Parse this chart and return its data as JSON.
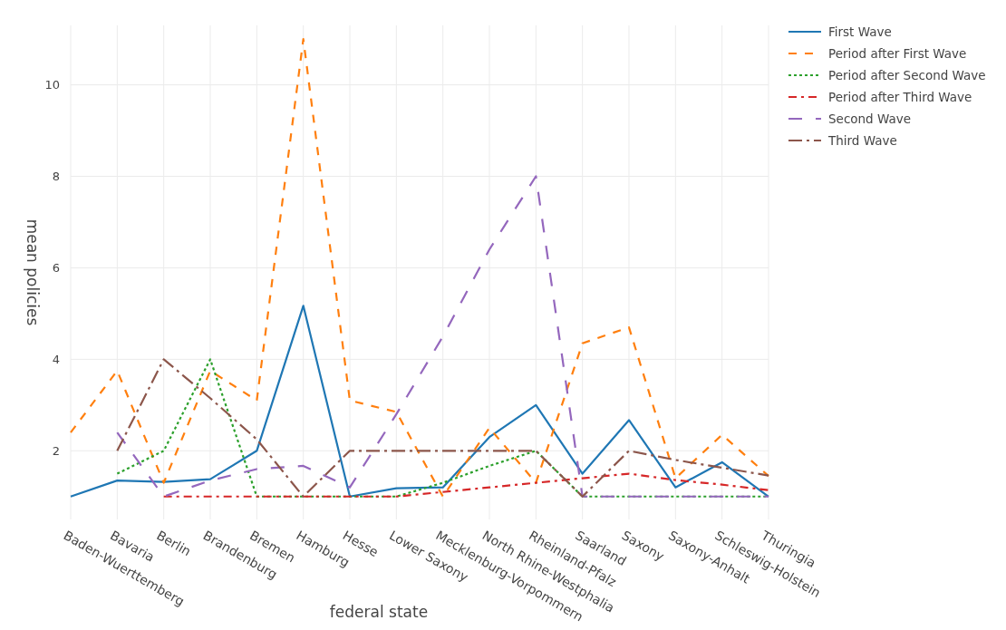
{
  "chart_data": {
    "type": "line",
    "xlabel": "federal state",
    "ylabel": "mean policies",
    "categories": [
      "Baden-Wuerttemberg",
      "Bavaria",
      "Berlin",
      "Brandenburg",
      "Bremen",
      "Hamburg",
      "Hesse",
      "Lower Saxony",
      "Mecklenburg-Vorpommern",
      "North Rhine-Westphalia",
      "Rheinland-Pfalz",
      "Saarland",
      "Saxony",
      "Saxony-Anhalt",
      "Schleswig-Holstein",
      "Thuringia"
    ],
    "series": [
      {
        "name": "First Wave",
        "color": "#1f77b4",
        "line_style": "solid",
        "values": [
          1,
          1.35,
          1.32,
          1.38,
          2,
          5.17,
          1,
          1.18,
          1.2,
          2.3,
          3,
          1.5,
          2.67,
          1.2,
          1.75,
          1
        ]
      },
      {
        "name": "Period after First Wave",
        "color": "#ff7f0e",
        "line_style": "dashed",
        "values": [
          2.4,
          3.75,
          1.3,
          3.75,
          3.1,
          11,
          3.1,
          2.85,
          1,
          2.5,
          1.3,
          4.35,
          4.7,
          1.4,
          2.35,
          1.45
        ]
      },
      {
        "name": "Period after Second Wave",
        "color": "#2ca02c",
        "line_style": "dotted",
        "values": [
          null,
          1.5,
          2,
          4,
          1,
          1,
          1,
          1,
          1.3,
          1.67,
          2,
          1,
          1,
          1,
          1,
          1
        ]
      },
      {
        "name": "Period after Third Wave",
        "color": "#d62728",
        "line_style": "dashdot",
        "values": [
          null,
          null,
          1,
          1,
          1,
          1,
          1,
          1,
          1.1,
          1.2,
          1.3,
          1.4,
          1.5,
          1.36,
          1.26,
          1.14
        ]
      },
      {
        "name": "Second Wave",
        "color": "#9467bd",
        "line_style": "longdash",
        "values": [
          null,
          2.4,
          1,
          1.35,
          1.6,
          1.67,
          1.2,
          2.8,
          4.5,
          6.4,
          8,
          1,
          1,
          1,
          1,
          1
        ]
      },
      {
        "name": "Third Wave",
        "color": "#8c564b",
        "line_style": "longdashdot",
        "values": [
          null,
          2,
          4,
          3.15,
          2.25,
          1,
          2,
          2,
          2,
          2,
          2,
          1,
          2,
          1.8,
          1.63,
          1.46
        ]
      }
    ],
    "ylim": [
      0.5,
      11.3
    ],
    "yticks": [
      2,
      4,
      6,
      8,
      10
    ],
    "grid": true,
    "legend": "top right"
  }
}
